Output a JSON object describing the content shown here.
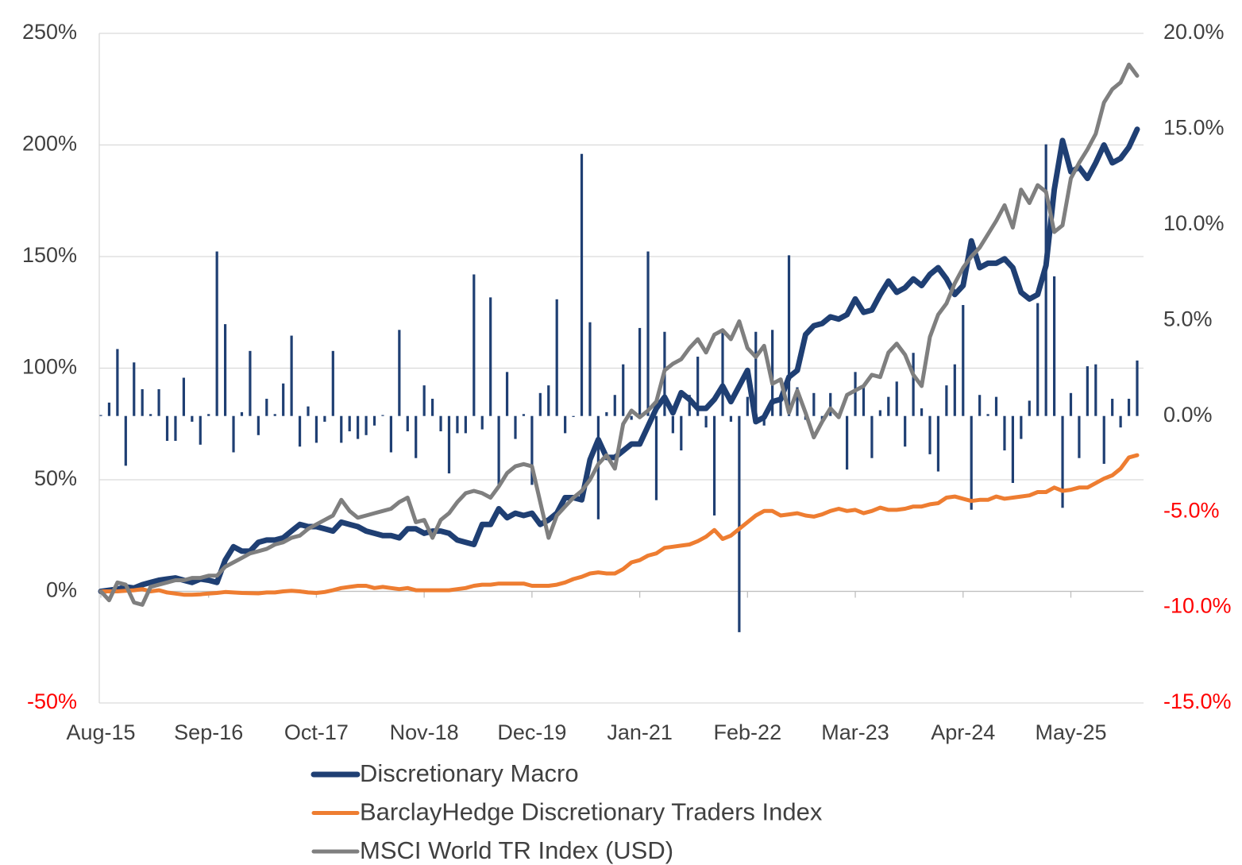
{
  "chart_data": {
    "type": "combo",
    "categories": [
      "Aug-15",
      null,
      null,
      null,
      null,
      null,
      null,
      null,
      null,
      null,
      null,
      null,
      null,
      "Sep-16",
      null,
      null,
      null,
      null,
      null,
      null,
      null,
      null,
      null,
      null,
      null,
      null,
      "Oct-17",
      null,
      null,
      null,
      null,
      null,
      null,
      null,
      null,
      null,
      null,
      null,
      null,
      "Nov-18",
      null,
      null,
      null,
      null,
      null,
      null,
      null,
      null,
      null,
      null,
      null,
      null,
      "Dec-19",
      null,
      null,
      null,
      null,
      null,
      null,
      null,
      null,
      null,
      null,
      null,
      null,
      "Jan-21",
      null,
      null,
      null,
      null,
      null,
      null,
      null,
      null,
      null,
      null,
      null,
      null,
      "Feb-22",
      null,
      null,
      null,
      null,
      null,
      null,
      null,
      null,
      null,
      null,
      null,
      null,
      "Mar-23",
      null,
      null,
      null,
      null,
      null,
      null,
      null,
      null,
      null,
      null,
      null,
      null,
      "Apr-24",
      null,
      null,
      null,
      null,
      null,
      null,
      null,
      null,
      null,
      null,
      null,
      null,
      "May-25",
      null,
      null,
      null,
      null,
      null,
      null,
      null,
      null
    ],
    "ylim": [
      -50,
      250
    ],
    "yticks": [
      {
        "value": -50,
        "label": "-50%"
      },
      {
        "value": 0,
        "label": "0%"
      },
      {
        "value": 50,
        "label": "50%"
      },
      {
        "value": 100,
        "label": "100%"
      },
      {
        "value": 150,
        "label": "150%"
      },
      {
        "value": 200,
        "label": "200%"
      },
      {
        "value": 250,
        "label": "250%"
      }
    ],
    "y2lim": [
      -15,
      20
    ],
    "y2ticks": [
      {
        "value": -15,
        "label": "-15.0%"
      },
      {
        "value": -10,
        "label": "-10.0%"
      },
      {
        "value": -5,
        "label": "-5.0%"
      },
      {
        "value": 0,
        "label": "0.0%"
      },
      {
        "value": 5,
        "label": "5.0%"
      },
      {
        "value": 10,
        "label": "10.0%"
      },
      {
        "value": 15,
        "label": "15.0%"
      },
      {
        "value": 20,
        "label": "20.0%"
      }
    ],
    "grid": true,
    "negative_tick_color": "#ff0000",
    "legend": "bottom",
    "series": [
      {
        "type": "bar",
        "axis": "y2",
        "color": "#1f3f73",
        "values": [
          0.05,
          0.7,
          3.5,
          -2.6,
          2.8,
          1.4,
          0.1,
          1.4,
          -1.3,
          -1.3,
          2,
          -0.3,
          -1.5,
          0.1,
          8.6,
          4.8,
          -1.9,
          0.2,
          3.4,
          -1,
          0.9,
          0.1,
          1.7,
          4.2,
          -1.6,
          0.5,
          -1.4,
          -0.3,
          3.4,
          -1.4,
          -0.8,
          -1.2,
          -1,
          -0.5,
          0.05,
          -1.9,
          4.5,
          -0.8,
          -2.2,
          1.6,
          0.9,
          -0.8,
          -3,
          -0.9,
          -0.9,
          7.4,
          -0.7,
          6.2,
          -3.6,
          2.3,
          -1.2,
          0.1,
          -3.6,
          1.2,
          1.6,
          6.1,
          -0.9,
          -0.05,
          13.7,
          4.9,
          -5.4,
          0.2,
          1.1,
          2.7,
          -0.2,
          4.6,
          8.6,
          -4.4,
          4.4,
          -0.9,
          -1.8,
          1.1,
          3.1,
          -0.6,
          -5.2,
          4.5,
          -0.3,
          -11.3,
          1,
          4.4,
          -0.5,
          4.5,
          0.9,
          8.4,
          1.5,
          -0.2,
          1.2,
          -0.4,
          1.2,
          -0.1,
          -2.8,
          2.3,
          1.5,
          -2.2,
          0.3,
          1,
          1.8,
          -1.6,
          3.3,
          0.4,
          -2,
          -2.9,
          1.6,
          2.7,
          5.8,
          -4.9,
          1.1,
          0.1,
          1,
          -1.8,
          -3.5,
          -1.2,
          0.8,
          5.9,
          14.2,
          7.3,
          -4.8,
          1.2,
          -2.2,
          2.6,
          2.7,
          -2.5,
          0.9,
          -0.6,
          0.9,
          2.9
        ]
      },
      {
        "type": "line",
        "name": "Discretionary Macro",
        "color": "#1f3f73",
        "width": 7,
        "values": [
          0,
          0.5,
          1,
          2,
          1.5,
          3,
          4,
          5,
          5.5,
          6,
          5,
          4,
          5.5,
          5,
          4,
          14,
          20,
          18,
          18,
          22,
          23,
          23,
          24,
          27,
          30,
          29,
          29,
          28,
          27,
          31,
          30,
          29,
          27,
          26,
          25,
          25,
          24,
          28,
          28,
          26,
          27,
          27,
          26,
          23,
          22,
          21,
          30,
          30,
          37,
          33,
          35,
          34,
          35,
          30,
          32,
          35,
          42,
          42,
          41,
          59,
          68,
          60,
          60,
          63,
          66,
          66,
          74,
          82,
          87,
          80,
          89,
          86,
          82,
          82,
          86,
          92,
          85,
          92,
          99,
          76,
          78,
          85,
          86,
          96,
          99,
          115,
          119,
          120,
          123,
          122,
          124,
          131,
          125,
          126,
          133,
          139,
          134,
          136,
          140,
          137,
          142,
          145,
          140,
          133,
          137,
          157,
          145,
          147,
          147,
          149,
          145,
          134,
          131,
          133,
          146,
          180,
          202,
          188,
          190,
          185,
          192,
          200,
          192,
          194,
          199,
          207
        ]
      },
      {
        "type": "line",
        "name": "BarclayHedge Discretionary Traders Index",
        "color": "#ee7d31",
        "width": 5,
        "values": [
          0,
          0,
          0,
          0.3,
          0.5,
          1,
          0,
          0.5,
          -0.5,
          -1,
          -1.5,
          -1.5,
          -1.3,
          -1,
          -0.7,
          -0.3,
          -0.5,
          -0.7,
          -0.8,
          -0.9,
          -0.5,
          -0.5,
          0,
          0.3,
          0,
          -0.5,
          -0.7,
          -0.3,
          0.5,
          1.5,
          2,
          2.5,
          2.5,
          1.5,
          2,
          1.5,
          1,
          1.5,
          0.5,
          0.5,
          0.5,
          0.5,
          0.5,
          1,
          1.5,
          2.5,
          3,
          3,
          3.5,
          3.5,
          3.5,
          3.5,
          2.5,
          2.5,
          2.5,
          3,
          4,
          5.5,
          6.5,
          8,
          8.5,
          8,
          8,
          10,
          13,
          14,
          16,
          17,
          19.5,
          20,
          20.5,
          21,
          22.5,
          24.5,
          27.5,
          23.5,
          25,
          28,
          31,
          34,
          36,
          36,
          34,
          34.5,
          35,
          34,
          33.5,
          34.5,
          36,
          37,
          36,
          36.5,
          35,
          36,
          37.5,
          36.5,
          36.5,
          37,
          38,
          38,
          39,
          39.5,
          42,
          42.5,
          41.5,
          40.5,
          41,
          41,
          42.5,
          41.5,
          42,
          42.5,
          43,
          44.5,
          44.5,
          46.5,
          45,
          45.5,
          46.5,
          46.5,
          48.5,
          50.5,
          52,
          55,
          60,
          61
        ]
      },
      {
        "type": "line",
        "name": "MSCI World TR Index (USD)",
        "color": "#7f7f7f",
        "width": 5,
        "values": [
          0,
          -4,
          4,
          3,
          -5,
          -6,
          2,
          3,
          4,
          5,
          5,
          6,
          6,
          7,
          7,
          11,
          13,
          15,
          17,
          18,
          19,
          21,
          22,
          24,
          25,
          28,
          30,
          32,
          34,
          41,
          36,
          33,
          34,
          35,
          36,
          37,
          40,
          42,
          31,
          32,
          24,
          32,
          35,
          40,
          44,
          45,
          44,
          42,
          47,
          53,
          56,
          57,
          56,
          40,
          24,
          34,
          38,
          42,
          45,
          50,
          57,
          61,
          55,
          75,
          81,
          78,
          81,
          85,
          99,
          102,
          104,
          109,
          113,
          107,
          115,
          117,
          113,
          121,
          109,
          105,
          110,
          93,
          95,
          80,
          90,
          80,
          69,
          76,
          82,
          78,
          88,
          90,
          92,
          97,
          96,
          107,
          111,
          106,
          97,
          92,
          114,
          124,
          129,
          138,
          145,
          150,
          154,
          160,
          166,
          173,
          163,
          180,
          174,
          182,
          179,
          161,
          164,
          185,
          192,
          198,
          205,
          219,
          225,
          228,
          236,
          231
        ]
      }
    ]
  }
}
